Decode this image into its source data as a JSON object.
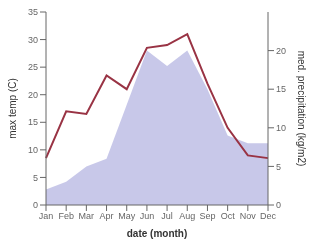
{
  "chart_data": {
    "type": "line",
    "xlabel": "date (month)",
    "ylabel": "max temp (C)",
    "y2label": "med. precipitation (kg/m2)",
    "categories": [
      "Jan",
      "Feb",
      "Mar",
      "Apr",
      "May",
      "Jun",
      "Jul",
      "Aug",
      "Sep",
      "Oct",
      "Nov",
      "Dec"
    ],
    "series": [
      {
        "type": "area",
        "axis": "y2",
        "color": "#aaaadd",
        "values": [
          2.0,
          3.0,
          5.0,
          6.0,
          13.0,
          20.0,
          18.0,
          20.0,
          15.0,
          9.0,
          8.0,
          8.0
        ]
      },
      {
        "type": "line",
        "color": "#993344",
        "values": [
          8.5,
          17.0,
          16.5,
          23.5,
          21.0,
          28.5,
          29.0,
          31.0,
          22.0,
          14.0,
          9.0,
          8.5
        ]
      }
    ],
    "ylim": [
      0,
      35
    ],
    "yticks": [
      0,
      5,
      10,
      15,
      20,
      25,
      30,
      35
    ],
    "y2lim": [
      0,
      25
    ],
    "y2ticks": [
      0,
      5,
      10,
      15,
      20
    ],
    "grid": false
  }
}
